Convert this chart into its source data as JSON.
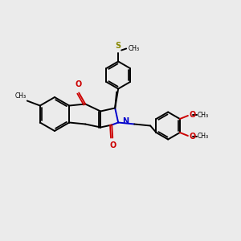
{
  "background_color": "#ebebeb",
  "black": "#000000",
  "red": "#cc0000",
  "blue": "#0000cc",
  "sulfur_color": "#888800",
  "lw": 1.4
}
